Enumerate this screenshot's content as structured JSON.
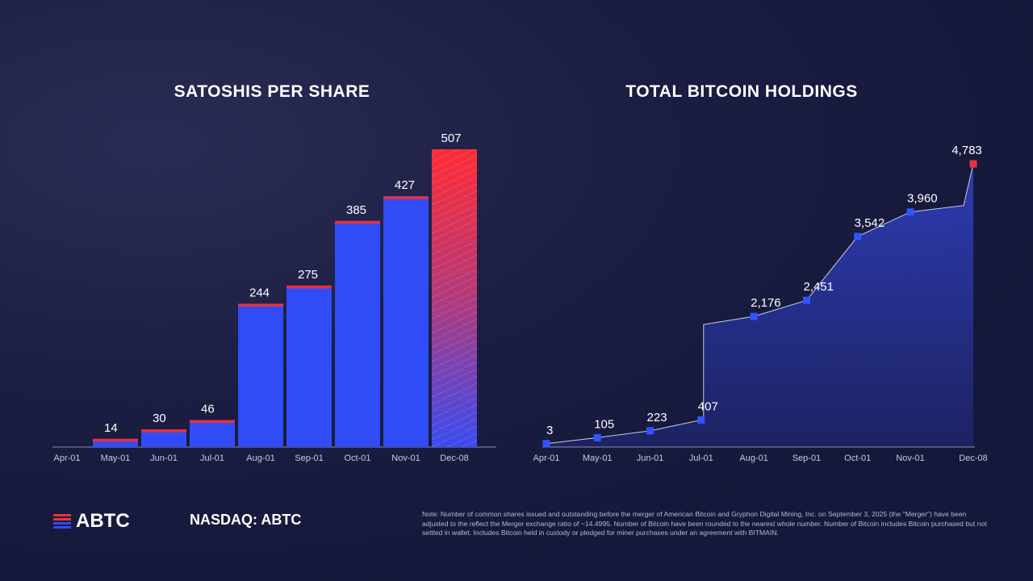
{
  "colors": {
    "bar": "#2f4cf6",
    "bar_top": "#e8313f",
    "highlight": "#f0303a",
    "area": "#2a3aa8",
    "marker": "#2f55ff",
    "marker_last": "#e8313f",
    "axis": "#8a8da8"
  },
  "footer": {
    "logo": "ABTC",
    "ticker": "NASDAQ: ABTC",
    "note": "Note: Number of common shares issued and outstanding before the merger of American Bitcoin and Gryphon Digital Mining, Inc. on September 3, 2025 (the \"Merger\") have been adjusted to the reflect the Merger exchange ratio of ~14.4995. Number of Bitcoin have been rounded to the nearest whole number. Number of Bitcoin includes Bitcoin purchased but not settled in wallet. Includes Bitcoin held in custody or pledged for miner purchases under an agreement with BITMAIN."
  },
  "chart_data": [
    {
      "type": "bar",
      "title": "SATOSHIS PER SHARE",
      "categories": [
        "Apr-01",
        "May-01",
        "Jun-01",
        "Jul-01",
        "Aug-01",
        "Sep-01",
        "Oct-01",
        "Nov-01",
        "Dec-08"
      ],
      "values": [
        null,
        14,
        30,
        46,
        244,
        275,
        385,
        427,
        507
      ],
      "data_labels": [
        "",
        "14",
        "30",
        "46",
        "244",
        "275",
        "385",
        "427",
        "507"
      ],
      "ylim": [
        0,
        507
      ],
      "grid": false,
      "highlight_last": true
    },
    {
      "type": "area",
      "title": "TOTAL BITCOIN HOLDINGS",
      "x": [
        "2025-04-01",
        "2025-05-01",
        "2025-06-01",
        "2025-07-01",
        "2025-08-01",
        "2025-09-01",
        "2025-10-01",
        "2025-11-01",
        "2025-12-08"
      ],
      "tick_labels": [
        "Apr-01",
        "May-01",
        "Jun-01",
        "Jul-01",
        "Aug-01",
        "Sep-01",
        "Oct-01",
        "Nov-01",
        "Dec-08"
      ],
      "values": [
        3,
        105,
        223,
        407,
        2176,
        2451,
        3542,
        3960,
        4783
      ],
      "data_labels": [
        "3",
        "105",
        "223",
        "407",
        "2,176",
        "2,451",
        "3,542",
        "3,960",
        "4,783"
      ],
      "ylim": [
        0,
        4783
      ],
      "grid": false
    }
  ]
}
